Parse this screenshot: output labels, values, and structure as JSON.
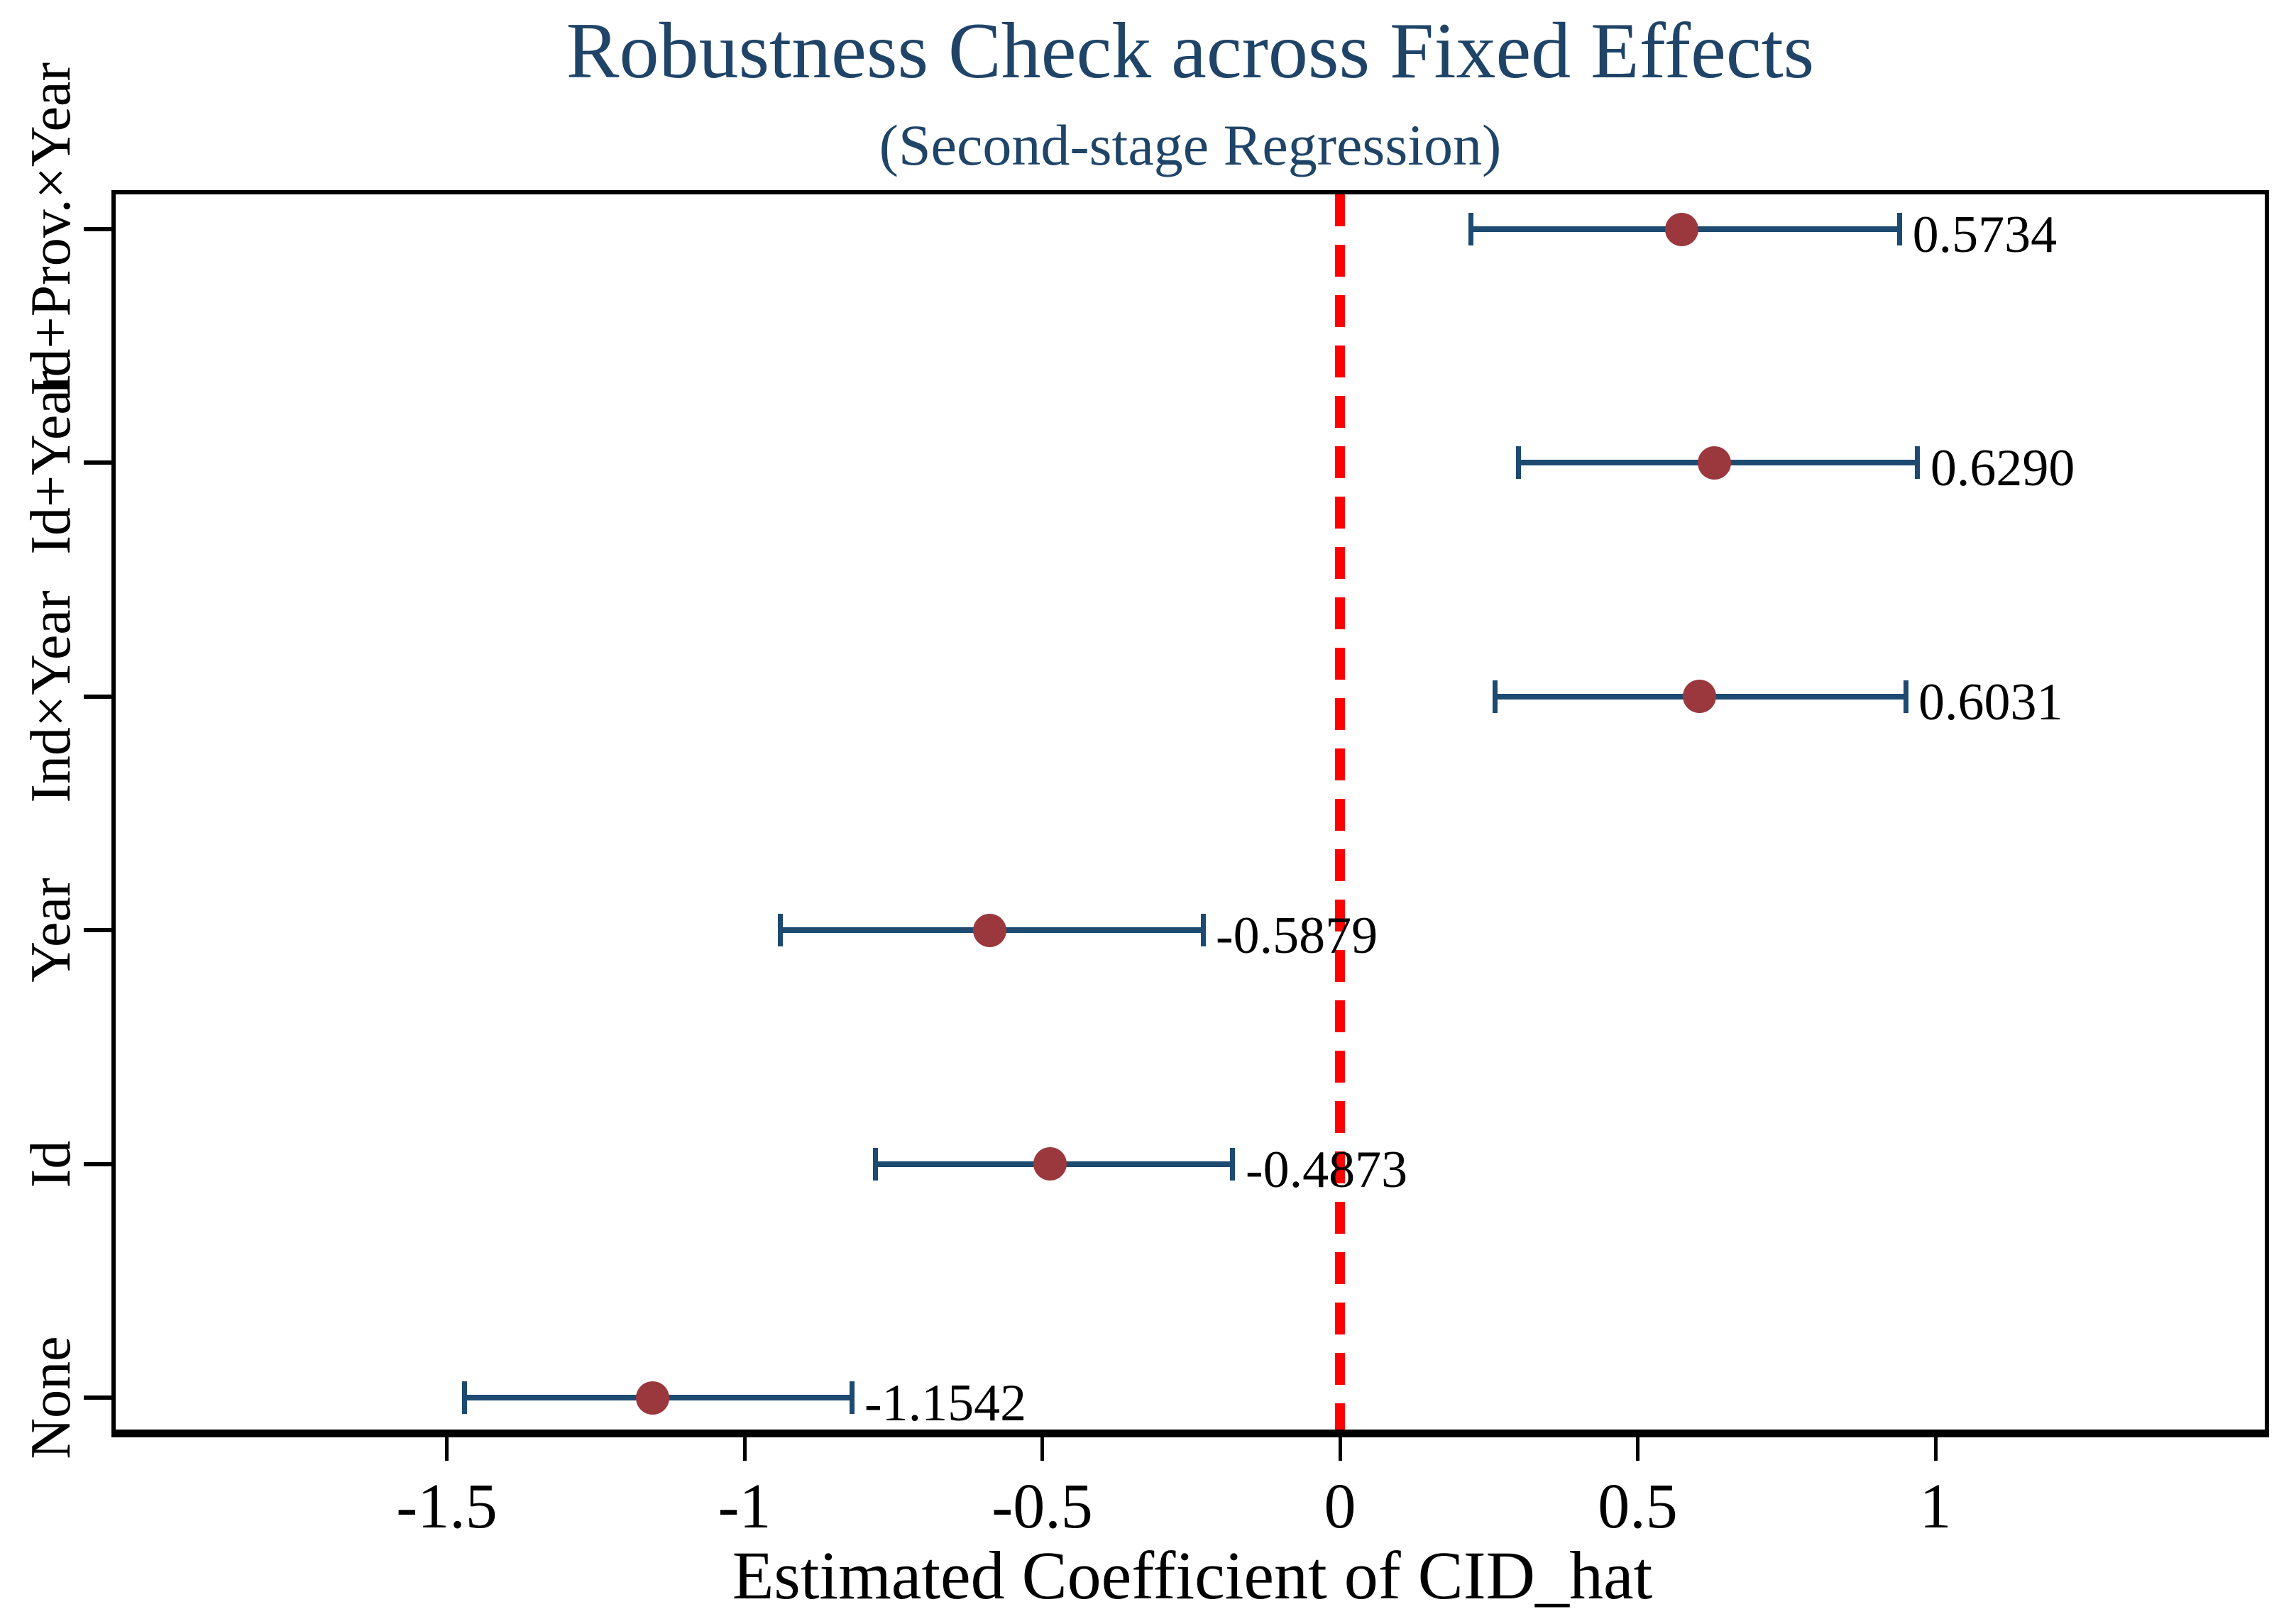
{
  "figure": {
    "background": "#ffffff"
  },
  "chart_data": {
    "type": "scatter",
    "chart_kind": "coefficient-forest-plot",
    "title": "Robustness Check across Fixed Effects",
    "subtitle": "(Second-stage Regression)",
    "xlabel": "Estimated Coefficient of CID_hat",
    "ylabel": "",
    "x_ticks": [
      -1.5,
      -1,
      -0.5,
      0,
      0.5,
      1
    ],
    "x_tick_labels": [
      "-1.5",
      "-1",
      "-0.5",
      "0",
      "0.5",
      "1"
    ],
    "xlim": [
      -2.06,
      1.56
    ],
    "grid": false,
    "legend": "none",
    "zero_line": {
      "x": 0,
      "style": "dashed",
      "color": "#ff0000"
    },
    "rows_top_to_bottom": [
      {
        "category": "Id+Prov.×Year",
        "estimate": 0.5734,
        "estimate_label": "0.5734",
        "ci_low": 0.22,
        "ci_high": 0.94
      },
      {
        "category": "Id+Year",
        "estimate": 0.629,
        "estimate_label": "0.6290",
        "ci_low": 0.3,
        "ci_high": 0.97
      },
      {
        "category": "Ind×Year",
        "estimate": 0.6031,
        "estimate_label": "0.6031",
        "ci_low": 0.26,
        "ci_high": 0.95
      },
      {
        "category": "Year",
        "estimate": -0.5879,
        "estimate_label": "-0.5879",
        "ci_low": -0.94,
        "ci_high": -0.23
      },
      {
        "category": "Id",
        "estimate": -0.4873,
        "estimate_label": "-0.4873",
        "ci_low": -0.78,
        "ci_high": -0.18
      },
      {
        "category": "None",
        "estimate": -1.1542,
        "estimate_label": "-1.1542",
        "ci_low": -1.47,
        "ci_high": -0.82
      }
    ],
    "colors": {
      "ci": "#1d4a71",
      "marker": "#9a383e",
      "zero_line": "#ff0000",
      "title": "#1f4468",
      "text": "#000000",
      "frame": "#000000"
    }
  }
}
